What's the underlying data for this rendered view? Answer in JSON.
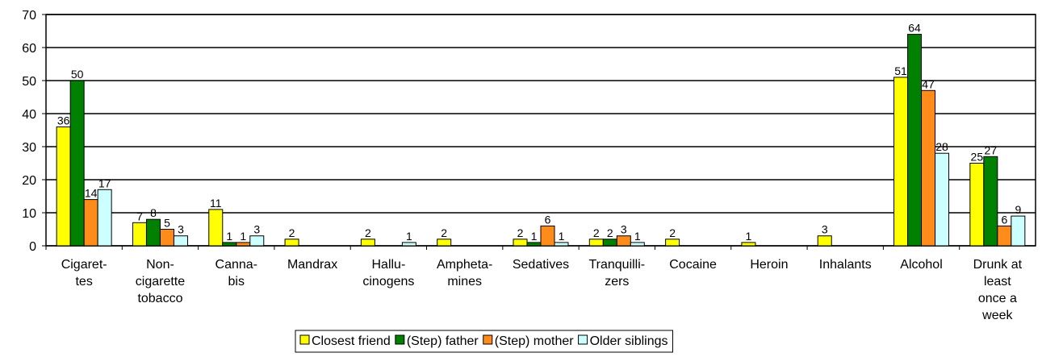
{
  "chart_data": {
    "type": "bar",
    "categories": [
      "Cigaret-\ntes",
      "Non-\ncigarette\ntobacco",
      "Canna-\nbis",
      "Mandrax",
      "Hallu-\ncinogens",
      "Ampheta-\nmines",
      "Sedatives",
      "Tranquilli-\nzers",
      "Cocaine",
      "Heroin",
      "Inhalants",
      "Alcohol",
      "Drunk at\nleast\nonce a\nweek"
    ],
    "series": [
      {
        "name": "Closest friend",
        "color": "#ffff00",
        "values": [
          36,
          7,
          11,
          2,
          2,
          2,
          2,
          2,
          2,
          1,
          3,
          51,
          25
        ]
      },
      {
        "name": "(Step) father",
        "color": "#008000",
        "values": [
          50,
          8,
          1,
          null,
          null,
          null,
          1,
          2,
          null,
          null,
          null,
          64,
          27
        ]
      },
      {
        "name": "(Step) mother",
        "color": "#ff8c1a",
        "values": [
          14,
          5,
          1,
          null,
          null,
          null,
          6,
          3,
          null,
          null,
          null,
          47,
          6
        ]
      },
      {
        "name": "Older siblings",
        "color": "#ccffff",
        "values": [
          17,
          3,
          3,
          null,
          1,
          null,
          1,
          1,
          null,
          null,
          null,
          28,
          9
        ]
      }
    ],
    "ylim": [
      0,
      70
    ],
    "yticks": [
      0,
      10,
      20,
      30,
      40,
      50,
      60,
      70
    ],
    "grid": true,
    "legend": "bottom"
  }
}
